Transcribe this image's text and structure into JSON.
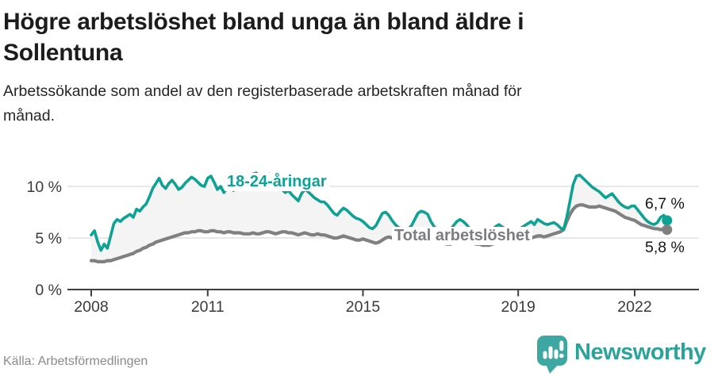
{
  "header": {
    "title_lines": [
      "Högre arbetslöshet bland unga än bland äldre i",
      "Sollentuna"
    ],
    "subtitle_lines": [
      "Arbetssökande som andel av den registerbaserade arbetskraften månad för",
      "månad."
    ]
  },
  "footer": {
    "source": "Källa: Arbetsförmedlingen",
    "brand": "Newsworthy"
  },
  "colors": {
    "youth_line": "#0fa294",
    "total_line": "#808080",
    "area_fill": "#f4f4f4",
    "gridline": "#d9d9d9",
    "axis": "#3f3f3f",
    "brand_teal": "#3fa7a1",
    "brand_text": "#2ba29a"
  },
  "chart_data": {
    "type": "line",
    "title": "Högre arbetslöshet bland unga än bland äldre i Sollentuna",
    "subtitle": "Arbetssökande som andel av den registerbaserade arbetskraften månad för månad.",
    "unit": "%",
    "frequency": "monthly",
    "x_range": [
      "2008-01",
      "2022-11"
    ],
    "ylim": [
      0,
      12
    ],
    "yticks": [
      0,
      5,
      10
    ],
    "ytick_suffix": " %",
    "xticks_years": [
      2008,
      2011,
      2015,
      2019,
      2022
    ],
    "grid": "horizontal",
    "legend_position": "inline-labels",
    "area_between_fill": "#f4f4f4",
    "series": [
      {
        "name": "18-24-åringar",
        "color": "#0fa294",
        "end_label": "6,7 %",
        "end_value": 6.7,
        "values": [
          5.3,
          5.7,
          4.6,
          3.8,
          4.4,
          4.0,
          5.2,
          6.4,
          6.8,
          6.6,
          6.9,
          7.1,
          7.3,
          7.0,
          7.8,
          7.6,
          8.0,
          8.3,
          9.0,
          9.8,
          10.3,
          10.8,
          10.1,
          9.8,
          10.3,
          10.6,
          10.2,
          9.7,
          9.9,
          10.3,
          10.6,
          10.9,
          10.7,
          10.4,
          10.1,
          10.0,
          10.8,
          11.0,
          10.4,
          9.7,
          10.0,
          9.4,
          9.8,
          10.0,
          9.6,
          9.9,
          10.2,
          10.4,
          10.4,
          10.8,
          11.2,
          11.3,
          11.0,
          10.6,
          11.0,
          11.2,
          10.8,
          10.4,
          10.0,
          9.7,
          9.4,
          9.6,
          9.2,
          8.9,
          8.6,
          9.3,
          9.7,
          9.5,
          9.2,
          8.9,
          8.7,
          8.5,
          8.5,
          8.2,
          7.8,
          7.4,
          7.2,
          7.6,
          7.9,
          7.7,
          7.4,
          7.1,
          6.9,
          6.8,
          6.6,
          6.3,
          6.0,
          5.9,
          6.2,
          6.8,
          7.4,
          7.5,
          7.2,
          6.7,
          6.3,
          6.0,
          5.9,
          5.8,
          5.9,
          6.2,
          6.8,
          7.4,
          7.6,
          7.5,
          7.3,
          6.6,
          6.1,
          5.8,
          5.6,
          5.5,
          5.6,
          5.8,
          6.2,
          6.6,
          6.8,
          6.6,
          6.3,
          5.9,
          5.6,
          5.4,
          5.3,
          5.2,
          5.3,
          5.5,
          5.8,
          6.1,
          6.3,
          6.1,
          5.9,
          5.7,
          5.6,
          5.6,
          5.8,
          6.0,
          6.2,
          6.4,
          6.6,
          6.3,
          6.8,
          6.6,
          6.4,
          6.3,
          6.4,
          6.5,
          6.3,
          6.0,
          5.8,
          7.0,
          8.6,
          10.2,
          11.0,
          11.1,
          10.8,
          10.5,
          10.2,
          9.9,
          9.7,
          9.5,
          9.2,
          8.9,
          9.1,
          9.3,
          8.9,
          8.5,
          8.2,
          8.0,
          7.9,
          8.1,
          8.1,
          7.7,
          7.3,
          6.9,
          6.6,
          6.4,
          6.3,
          6.5,
          7.0,
          7.2,
          6.7
        ]
      },
      {
        "name": "Total arbetslöshet",
        "color": "#808080",
        "end_label": "5,8 %",
        "end_value": 5.8,
        "values": [
          2.8,
          2.8,
          2.7,
          2.7,
          2.7,
          2.8,
          2.8,
          2.9,
          3.0,
          3.1,
          3.2,
          3.3,
          3.4,
          3.5,
          3.7,
          3.8,
          4.0,
          4.1,
          4.3,
          4.4,
          4.6,
          4.7,
          4.8,
          4.9,
          5.0,
          5.1,
          5.2,
          5.3,
          5.4,
          5.5,
          5.5,
          5.6,
          5.6,
          5.7,
          5.7,
          5.6,
          5.6,
          5.7,
          5.7,
          5.6,
          5.6,
          5.5,
          5.6,
          5.6,
          5.5,
          5.5,
          5.5,
          5.4,
          5.4,
          5.4,
          5.5,
          5.4,
          5.4,
          5.5,
          5.6,
          5.6,
          5.5,
          5.4,
          5.5,
          5.6,
          5.6,
          5.5,
          5.5,
          5.4,
          5.3,
          5.4,
          5.5,
          5.4,
          5.3,
          5.3,
          5.4,
          5.3,
          5.3,
          5.2,
          5.1,
          5.0,
          5.0,
          5.1,
          5.2,
          5.1,
          5.0,
          4.9,
          4.8,
          4.8,
          4.9,
          4.8,
          4.7,
          4.6,
          4.5,
          4.6,
          4.8,
          5.0,
          5.1,
          5.0,
          4.9,
          4.8,
          4.7,
          4.6,
          4.6,
          4.5,
          4.6,
          4.7,
          4.9,
          4.9,
          4.8,
          4.7,
          4.6,
          4.6,
          4.5,
          4.5,
          4.4,
          4.4,
          4.5,
          4.6,
          4.7,
          4.7,
          4.6,
          4.5,
          4.5,
          4.4,
          4.4,
          4.3,
          4.3,
          4.3,
          4.4,
          4.5,
          4.6,
          4.6,
          4.5,
          4.5,
          4.5,
          4.6,
          4.7,
          4.8,
          4.8,
          4.9,
          5.0,
          5.1,
          5.2,
          5.2,
          5.1,
          5.2,
          5.3,
          5.4,
          5.5,
          5.6,
          5.8,
          6.6,
          7.3,
          7.8,
          8.1,
          8.2,
          8.2,
          8.1,
          8.0,
          8.0,
          8.0,
          8.1,
          8.0,
          7.9,
          7.8,
          7.7,
          7.6,
          7.4,
          7.2,
          7.0,
          6.9,
          6.8,
          6.7,
          6.5,
          6.3,
          6.2,
          6.1,
          6.0,
          5.9,
          5.9,
          5.8,
          5.9,
          5.8
        ]
      }
    ]
  }
}
